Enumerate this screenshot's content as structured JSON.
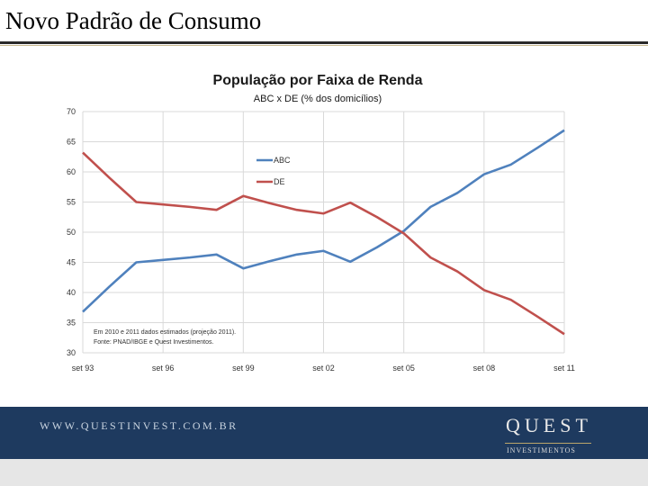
{
  "slide": {
    "title": "Novo Padrão de Consumo"
  },
  "footer": {
    "url": "WWW.QUESTINVEST.COM.BR",
    "logo": "QUEST",
    "logo_sub": "INVESTIMENTOS"
  },
  "chart_data": {
    "type": "line",
    "title": "População por Faixa de Renda",
    "subtitle": "ABC x DE (% dos domicílios)",
    "xlabel": "",
    "ylabel": "",
    "x_ticks": [
      "set 93",
      "set 96",
      "set 99",
      "set 02",
      "set 05",
      "set 08",
      "set 11"
    ],
    "x": [
      1993,
      1994,
      1995,
      1996,
      1997,
      1998,
      1999,
      2000,
      2001,
      2002,
      2003,
      2004,
      2005,
      2006,
      2007,
      2008,
      2009,
      2010,
      2011
    ],
    "ylim": [
      30,
      70
    ],
    "y_ticks": [
      30,
      35,
      40,
      45,
      50,
      55,
      60,
      65,
      70
    ],
    "grid": true,
    "legend_position": "upper-middle",
    "series": [
      {
        "name": "ABC",
        "color": "#4f81bd",
        "values": [
          36.8,
          41.0,
          45.0,
          45.4,
          45.8,
          46.3,
          44.0,
          45.2,
          46.3,
          46.9,
          45.1,
          47.5,
          50.2,
          54.2,
          56.5,
          59.6,
          61.2,
          64.0,
          66.9
        ]
      },
      {
        "name": "DE",
        "color": "#c0504d",
        "values": [
          63.2,
          59.0,
          55.0,
          54.6,
          54.2,
          53.7,
          56.0,
          54.8,
          53.7,
          53.1,
          54.9,
          52.5,
          49.8,
          45.8,
          43.5,
          40.4,
          38.8,
          36.0,
          33.1
        ]
      }
    ],
    "note_lines": [
      "Em 2010 e 2011 dados estimados (projeção 2011).",
      "Fonte: PNAD/IBGE e Quest Investimentos."
    ]
  }
}
